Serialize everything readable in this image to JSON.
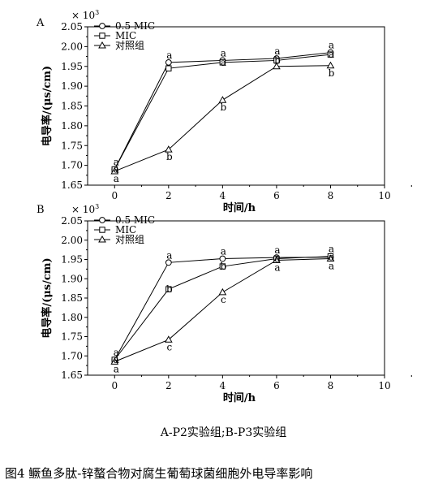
{
  "chart_data": [
    {
      "type": "line",
      "panel_label": "A",
      "multiplier": "× 10",
      "multiplier_exp": "3",
      "xlabel": "时间/h",
      "ylabel": "电导率/(μs/cm)",
      "x": [
        0,
        2,
        4,
        6,
        8
      ],
      "xlim": [
        -1,
        10
      ],
      "ylim": [
        1.65,
        2.05
      ],
      "xticks": [
        "0",
        "2",
        "4",
        "6",
        "8",
        "10"
      ],
      "yticks": [
        "1.65",
        "1.70",
        "1.75",
        "1.80",
        "1.85",
        "1.90",
        "1.95",
        "2.00",
        "2.05"
      ],
      "legend_position": "top-left",
      "series": [
        {
          "name": "0.5 MIC",
          "marker": "circle",
          "values": [
            1.69,
            1.96,
            1.965,
            1.97,
            1.985
          ],
          "letters": [
            "a",
            "a",
            "a",
            "a",
            "a"
          ]
        },
        {
          "name": "MIC",
          "marker": "square",
          "values": [
            1.69,
            1.945,
            1.96,
            1.965,
            1.98
          ],
          "letters": [
            "a",
            "",
            "a",
            "b",
            "a"
          ]
        },
        {
          "name": "对照组",
          "marker": "triangle",
          "values": [
            1.685,
            1.74,
            1.865,
            1.95,
            1.952
          ],
          "letters": [
            "a",
            "b",
            "b",
            "",
            "b"
          ]
        }
      ]
    },
    {
      "type": "line",
      "panel_label": "B",
      "multiplier": "× 10",
      "multiplier_exp": "3",
      "xlabel": "时间/h",
      "ylabel": "电导率/(μs/cm)",
      "x": [
        0,
        2,
        4,
        6,
        8
      ],
      "xlim": [
        -1,
        10
      ],
      "ylim": [
        1.65,
        2.05
      ],
      "xticks": [
        "0",
        "2",
        "4",
        "6",
        "8",
        "10"
      ],
      "yticks": [
        "1.65",
        "1.70",
        "1.75",
        "1.80",
        "1.85",
        "1.90",
        "1.95",
        "2.00",
        "2.05"
      ],
      "legend_position": "top-left",
      "series": [
        {
          "name": "0.5 MIC",
          "marker": "circle",
          "values": [
            1.69,
            1.942,
            1.952,
            1.955,
            1.956
          ],
          "letters": [
            "a",
            "a",
            "a",
            "a",
            "a"
          ]
        },
        {
          "name": "MIC",
          "marker": "square",
          "values": [
            1.69,
            1.873,
            1.932,
            1.952,
            1.958
          ],
          "letters": [
            "a",
            "b",
            "b",
            "a",
            "a"
          ]
        },
        {
          "name": "对照组",
          "marker": "triangle",
          "values": [
            1.685,
            1.742,
            1.865,
            1.948,
            1.952
          ],
          "letters": [
            "a",
            "c",
            "c",
            "a",
            "a"
          ]
        }
      ]
    }
  ],
  "captions": {
    "sub_caption": "A-P2实验组;B-P3实验组",
    "figure_caption": "图4 鳜鱼多肽-锌螯合物对腐生葡萄球菌细胞外电导率影响"
  }
}
